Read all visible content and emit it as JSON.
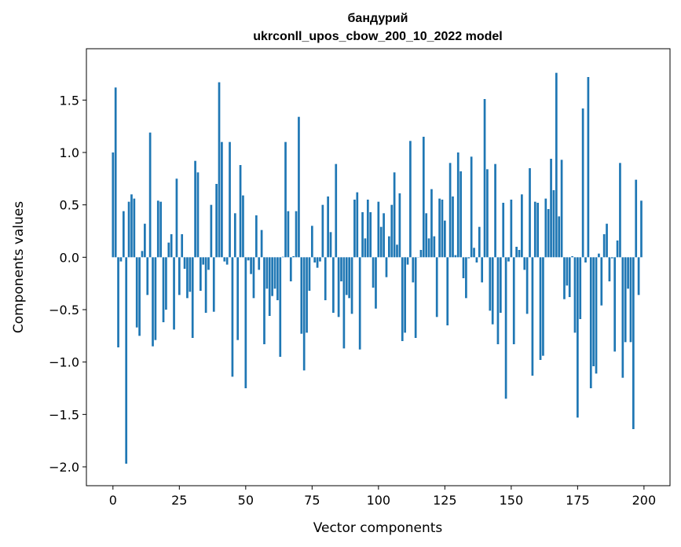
{
  "chart_data": {
    "type": "bar",
    "title": [
      "бандурий",
      "ukrconll_upos_cbow_200_10_2022 model"
    ],
    "xlabel": "Vector components",
    "ylabel": "Components values",
    "xlim": [
      -10,
      209.8
    ],
    "ylim": [
      -2.18,
      1.99
    ],
    "xticks": [
      0,
      25,
      50,
      75,
      100,
      125,
      150,
      175,
      200
    ],
    "yticks": [
      -2.0,
      -1.5,
      -1.0,
      -0.5,
      0.0,
      0.5,
      1.0,
      1.5
    ],
    "xtick_labels": [
      "0",
      "25",
      "50",
      "75",
      "100",
      "125",
      "150",
      "175",
      "200"
    ],
    "ytick_labels": [
      "−2.0",
      "−1.5",
      "−1.0",
      "−0.5",
      "0.0",
      "0.5",
      "1.0",
      "1.5"
    ],
    "bar_color": "#1f77b4",
    "grid": false,
    "values": [
      1.0,
      1.62,
      -0.86,
      -0.04,
      0.44,
      -1.97,
      0.53,
      0.6,
      0.56,
      -0.67,
      -0.75,
      0.06,
      0.32,
      -0.36,
      1.19,
      -0.85,
      -0.79,
      0.54,
      0.53,
      -0.62,
      -0.5,
      0.14,
      0.22,
      -0.69,
      0.75,
      -0.36,
      0.22,
      -0.11,
      -0.39,
      -0.33,
      -0.77,
      0.92,
      0.81,
      -0.32,
      -0.07,
      -0.53,
      -0.12,
      0.5,
      -0.52,
      0.7,
      1.67,
      1.1,
      -0.04,
      -0.07,
      1.1,
      -1.14,
      0.42,
      -0.79,
      0.88,
      0.59,
      -1.25,
      -0.03,
      -0.16,
      -0.39,
      0.4,
      -0.12,
      0.26,
      -0.83,
      -0.3,
      -0.56,
      -0.37,
      -0.3,
      -0.41,
      -0.95,
      0.005,
      1.1,
      0.44,
      -0.23,
      0.01,
      0.44,
      1.34,
      -0.73,
      -1.08,
      -0.72,
      -0.32,
      0.3,
      -0.05,
      -0.1,
      -0.04,
      0.5,
      -0.41,
      0.58,
      0.24,
      -0.53,
      0.89,
      -0.57,
      -0.23,
      -0.87,
      -0.36,
      -0.39,
      -0.54,
      0.55,
      0.62,
      -0.88,
      0.43,
      0.18,
      0.55,
      0.43,
      -0.29,
      -0.49,
      0.53,
      0.29,
      0.42,
      -0.19,
      0.2,
      0.5,
      0.81,
      0.12,
      0.61,
      -0.8,
      -0.72,
      -0.07,
      1.11,
      -0.24,
      -0.77,
      0.0,
      0.07,
      1.15,
      0.42,
      0.18,
      0.65,
      0.2,
      -0.57,
      0.56,
      0.55,
      0.35,
      -0.65,
      0.9,
      0.58,
      0.02,
      1.0,
      0.82,
      -0.2,
      -0.39,
      -0.01,
      0.96,
      0.09,
      -0.05,
      0.29,
      -0.24,
      1.51,
      0.84,
      -0.51,
      -0.64,
      0.89,
      -0.83,
      -0.53,
      0.52,
      -1.35,
      -0.04,
      0.55,
      -0.83,
      0.1,
      0.07,
      0.6,
      -0.12,
      -0.54,
      0.85,
      -1.13,
      0.53,
      0.52,
      -0.98,
      -0.94,
      0.56,
      0.46,
      0.94,
      0.64,
      1.76,
      0.39,
      0.93,
      -0.4,
      -0.27,
      -0.38,
      0.01,
      -0.72,
      -1.53,
      -0.59,
      1.42,
      -0.05,
      1.72,
      -1.25,
      -1.04,
      -1.11,
      0.035,
      -0.46,
      0.22,
      0.32,
      -0.23,
      -0.01,
      -0.9,
      0.16,
      0.9,
      -1.15,
      -0.81,
      -0.3,
      -0.81,
      -1.64,
      0.74,
      -0.36,
      0.54
    ]
  }
}
